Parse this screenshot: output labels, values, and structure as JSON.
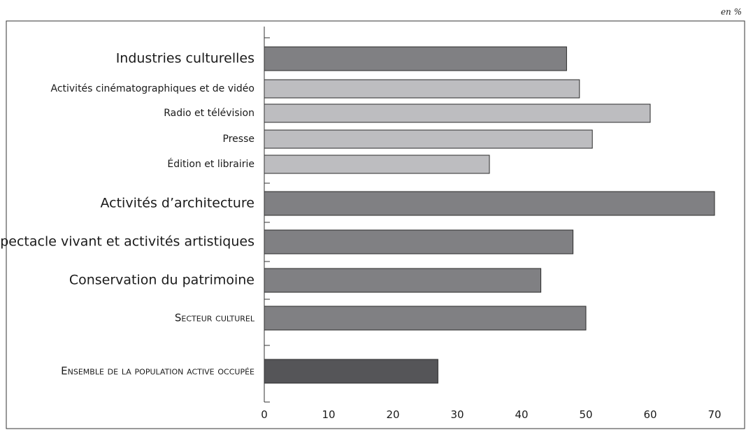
{
  "unit_label": "en %",
  "chart_data": {
    "type": "bar",
    "orientation": "horizontal",
    "title": "",
    "xlabel": "",
    "ylabel": "",
    "xlim": [
      0,
      70
    ],
    "ticks": [
      0,
      10,
      20,
      30,
      40,
      50,
      60,
      70
    ],
    "grid": false,
    "categories": [
      "Industries culturelles",
      "Activités cinématographiques et de vidéo",
      "Radio et télévision",
      "Presse",
      "Édition et librairie",
      "Activités d’architecture",
      "Spectacle vivant et activités artistiques",
      "Conservation du patrimoine",
      "Secteur culturel",
      "Ensemble de la population active occupée"
    ],
    "values": [
      47,
      49,
      60,
      51,
      35,
      70,
      48,
      43,
      50,
      27
    ],
    "colors": {
      "main": "#808083",
      "sub": "#bdbdc0",
      "total": "#555558"
    }
  }
}
